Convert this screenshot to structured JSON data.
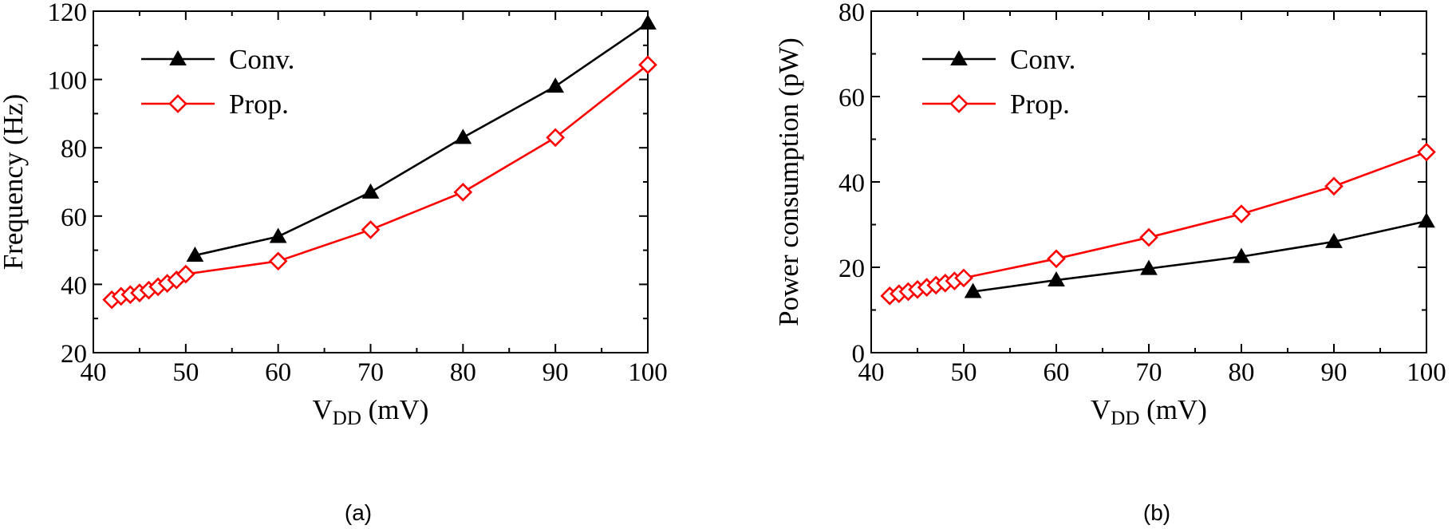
{
  "chart_data": [
    {
      "panel": "(a)",
      "type": "line",
      "xlabel": {
        "main": "V",
        "sub": "DD",
        "rest": " (mV)"
      },
      "ylabel": "Frequency (Hz)",
      "xlim": [
        40,
        100
      ],
      "ylim": [
        20,
        120
      ],
      "xticks": [
        40,
        50,
        60,
        70,
        80,
        90,
        100
      ],
      "yticks": [
        20,
        40,
        60,
        80,
        100,
        120
      ],
      "legend_position": "top-left",
      "series": [
        {
          "name": "Conv.",
          "color": "#000000",
          "marker": "filled-triangle",
          "x": [
            51,
            60,
            70,
            80,
            90,
            100
          ],
          "y": [
            48.5,
            54,
            67,
            83,
            98,
            116.5
          ]
        },
        {
          "name": "Prop.",
          "color": "#ff0000",
          "marker": "open-diamond",
          "x": [
            42,
            43,
            44,
            45,
            46,
            47,
            48,
            49,
            50,
            60,
            70,
            80,
            90,
            100
          ],
          "y": [
            35.5,
            36.5,
            37,
            37.5,
            38.3,
            39.3,
            40.3,
            41.3,
            43,
            46.8,
            56,
            67,
            83,
            104.3
          ]
        }
      ]
    },
    {
      "panel": "(b)",
      "type": "line",
      "xlabel": {
        "main": "V",
        "sub": "DD",
        "rest": " (mV)"
      },
      "ylabel": "Power consumption (pW)",
      "xlim": [
        40,
        100
      ],
      "ylim": [
        0,
        80
      ],
      "xticks": [
        40,
        50,
        60,
        70,
        80,
        90,
        100
      ],
      "yticks": [
        0,
        20,
        40,
        60,
        80
      ],
      "legend_position": "top-left",
      "series": [
        {
          "name": "Conv.",
          "color": "#000000",
          "marker": "filled-triangle",
          "x": [
            51,
            60,
            70,
            80,
            90,
            100
          ],
          "y": [
            14.3,
            17,
            19.7,
            22.5,
            26,
            30.8
          ]
        },
        {
          "name": "Prop.",
          "color": "#ff0000",
          "marker": "open-diamond",
          "x": [
            42,
            43,
            44,
            45,
            46,
            47,
            48,
            49,
            50,
            60,
            70,
            80,
            90,
            100
          ],
          "y": [
            13.3,
            13.8,
            14.3,
            14.8,
            15.3,
            15.8,
            16.3,
            16.8,
            17.5,
            22,
            27,
            32.5,
            39,
            47
          ]
        }
      ]
    }
  ]
}
